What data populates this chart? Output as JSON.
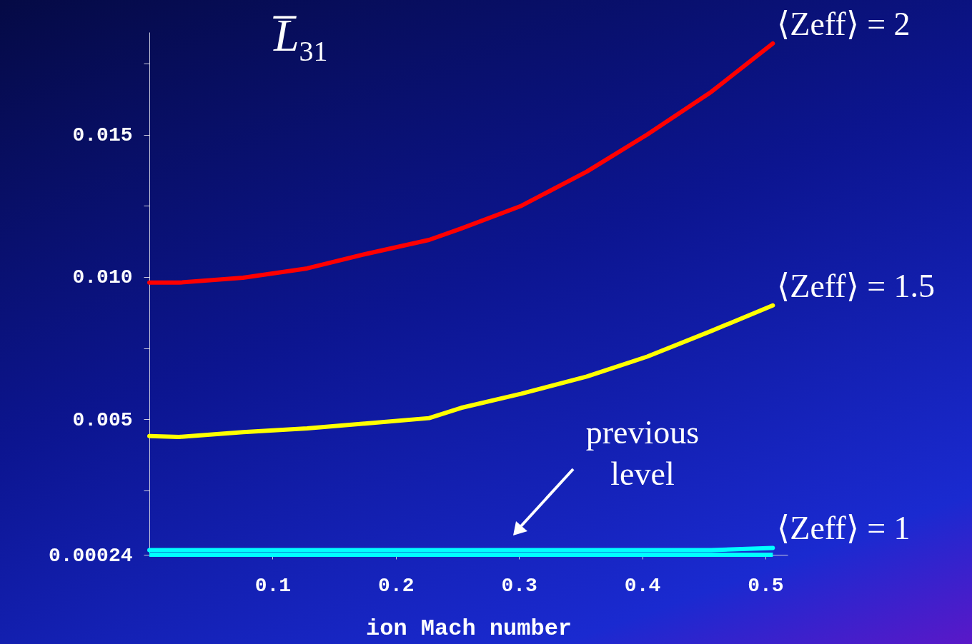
{
  "chart_data": {
    "type": "line",
    "title": "L̅$_{31}$",
    "xlabel": "ion Mach number",
    "x": [
      0,
      0.024,
      0.076,
      0.128,
      0.175,
      0.227,
      0.253,
      0.302,
      0.355,
      0.404,
      0.456,
      0.506
    ],
    "series": [
      {
        "name": "⟨Zeff⟩ = 2",
        "color": "#ff0000",
        "values": [
          0.0098,
          0.0098,
          0.00997,
          0.0103,
          0.0108,
          0.0113,
          0.0117,
          0.0125,
          0.0137,
          0.015,
          0.0165,
          0.0182
        ]
      },
      {
        "name": "⟨Zeff⟩ = 1.5",
        "color": "#ffff00",
        "values": [
          0.00441,
          0.00438,
          0.00455,
          0.00468,
          0.00485,
          0.00504,
          0.0054,
          0.0059,
          0.0065,
          0.0072,
          0.0081,
          0.009
        ]
      },
      {
        "name": "⟨Zeff⟩ = 1",
        "color": "#00ffff",
        "values": [
          0.0004,
          0.0004,
          0.0004,
          0.0004,
          0.0004,
          0.0004,
          0.0004,
          0.0004,
          0.0004,
          0.0004,
          0.0004,
          0.00048
        ]
      }
    ],
    "ref_lines": [
      {
        "axis": "y",
        "value": 0.00024,
        "label": "previous level",
        "color": "#00ffff"
      }
    ],
    "xlim": [
      0,
      0.518
    ],
    "ylim": [
      0.00024,
      0.0186
    ],
    "xticks": [
      0.1,
      0.2,
      0.3,
      0.4,
      0.5
    ],
    "yticks": [
      0.00024,
      {
        "value": 0.0025,
        "label": null
      },
      0.005,
      {
        "value": 0.0075,
        "label": null
      },
      {
        "value": 0.01,
        "label": "0.010"
      },
      {
        "value": 0.0125,
        "label": null
      },
      0.015,
      {
        "value": 0.0175,
        "label": null
      }
    ],
    "grid": false,
    "marker": "none",
    "line_style": "solid"
  }
}
